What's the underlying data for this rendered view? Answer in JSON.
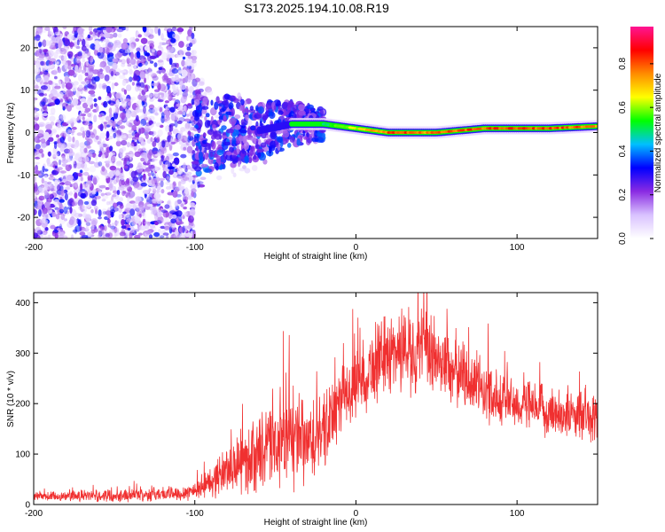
{
  "figure_title": "S173.2025.194.10.08.R19",
  "chart_data": [
    {
      "type": "heatmap",
      "title": "S173.2025.194.10.08.R19",
      "xlabel": "Height of straight line (km)",
      "ylabel": "Frequency (Hz)",
      "xlim": [
        -200,
        150
      ],
      "ylim": [
        -25,
        25
      ],
      "xticks": [
        -200,
        -100,
        0,
        100
      ],
      "yticks": [
        20,
        10,
        0,
        -10,
        -20
      ],
      "colorbar": {
        "label": "Normalized spectral amplitude",
        "range": [
          0.0,
          0.97
        ],
        "ticks": [
          0.0,
          0.2,
          0.4,
          0.6,
          0.8
        ],
        "colormap": [
          "#ffffff",
          "#d9c2ff",
          "#8a2be2",
          "#0000ff",
          "#00bfff",
          "#00ff00",
          "#ffff00",
          "#ff8c00",
          "#ff0000",
          "#ff1493"
        ]
      },
      "ridge": {
        "description_points": [
          {
            "x": -90,
            "f": 0,
            "amp": 0.2
          },
          {
            "x": -60,
            "f": 0.5,
            "amp": 0.25
          },
          {
            "x": -40,
            "f": 2,
            "amp": 0.35
          },
          {
            "x": -20,
            "f": 2,
            "amp": 0.55
          },
          {
            "x": 0,
            "f": 1,
            "amp": 0.7
          },
          {
            "x": 20,
            "f": 0,
            "amp": 0.9
          },
          {
            "x": 50,
            "f": 0,
            "amp": 0.85
          },
          {
            "x": 80,
            "f": 1,
            "amp": 0.9
          },
          {
            "x": 120,
            "f": 1,
            "amp": 0.9
          },
          {
            "x": 150,
            "f": 1.5,
            "amp": 0.85
          }
        ]
      }
    },
    {
      "type": "line",
      "xlabel": "Height of straight line (km)",
      "ylabel": "SNR (10 * v/v)",
      "xlim": [
        -200,
        150
      ],
      "ylim": [
        0,
        420
      ],
      "xticks": [
        -200,
        -100,
        0,
        100
      ],
      "yticks": [
        0,
        100,
        200,
        300,
        400
      ],
      "color": "#ff3030",
      "envelope": {
        "x": [
          -200,
          -150,
          -110,
          -100,
          -90,
          -80,
          -70,
          -60,
          -50,
          -40,
          -30,
          -20,
          -10,
          0,
          10,
          20,
          30,
          40,
          50,
          60,
          70,
          80,
          90,
          100,
          110,
          120,
          130,
          140,
          150
        ],
        "mean": [
          15,
          18,
          22,
          28,
          45,
          70,
          85,
          100,
          120,
          130,
          115,
          140,
          200,
          240,
          270,
          300,
          310,
          305,
          290,
          270,
          250,
          225,
          210,
          200,
          190,
          185,
          180,
          175,
          170
        ],
        "spread": [
          8,
          10,
          12,
          15,
          25,
          40,
          50,
          60,
          70,
          80,
          70,
          60,
          55,
          55,
          60,
          65,
          70,
          70,
          65,
          60,
          55,
          50,
          45,
          40,
          40,
          40,
          40,
          40,
          40
        ]
      }
    }
  ]
}
